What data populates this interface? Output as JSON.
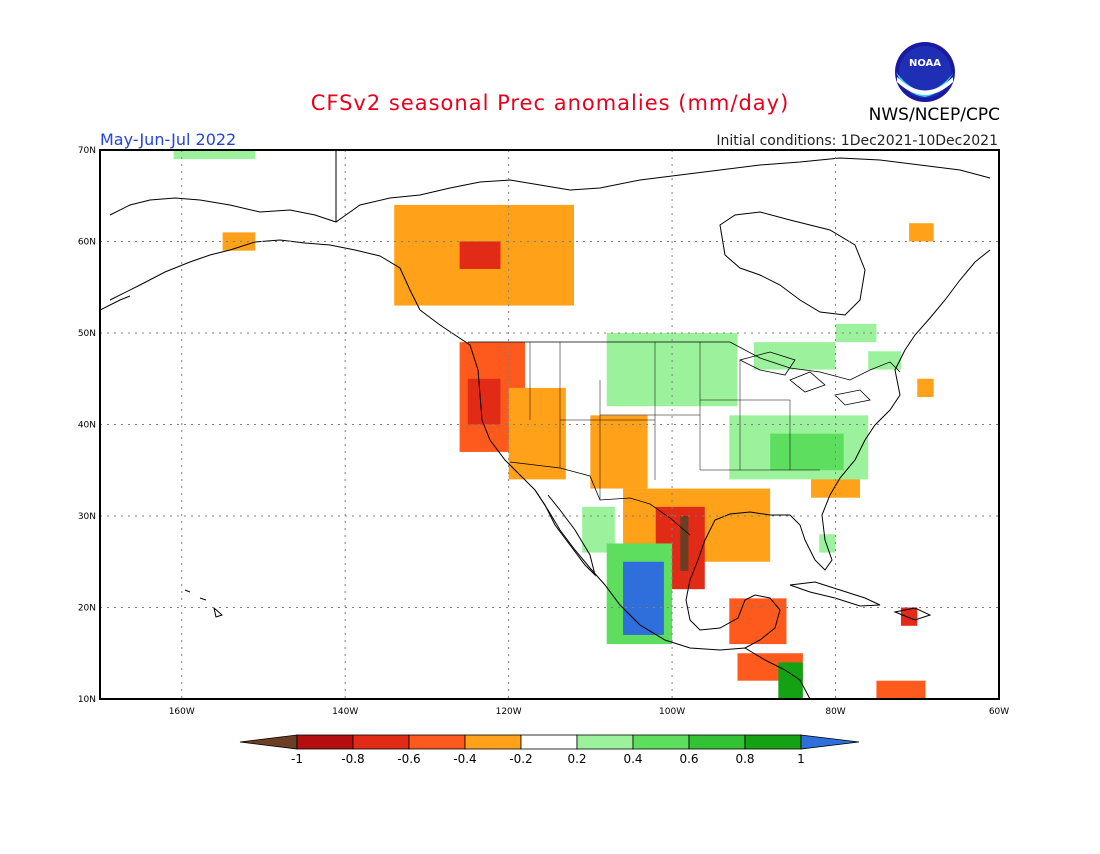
{
  "title": "CFSv2 seasonal Prec anomalies (mm/day)",
  "period": "May-Jun-Jul 2022",
  "initial_conditions": "Initial conditions: 1Dec2021-10Dec2021",
  "agency": "NWS/NCEP/CPC",
  "logo_text": "NOAA",
  "colors": {
    "title": "#e8001e",
    "period": "#2244dd",
    "dry": [
      "#6b3f24",
      "#b50e0e",
      "#e22b17",
      "#ff5a1e",
      "#ffa21a"
    ],
    "neutral": "#ffffff",
    "wet": [
      "#9cf29c",
      "#5ede5e",
      "#33c233",
      "#14a214",
      "#2e6fdc"
    ]
  },
  "map": {
    "lat_ticks": [
      "70N",
      "60N",
      "50N",
      "40N",
      "30N",
      "20N",
      "10N"
    ],
    "lon_ticks": [
      "160W",
      "140W",
      "120W",
      "100W",
      "80W",
      "60W"
    ],
    "lon_range": [
      -170,
      -60
    ],
    "lat_range": [
      10,
      70
    ]
  },
  "legend": {
    "labels": [
      "-1",
      "-0.8",
      "-0.6",
      "-0.4",
      "-0.2",
      "0.2",
      "0.4",
      "0.6",
      "0.8",
      "1"
    ]
  },
  "anomaly_regions": [
    {
      "name": "canada-west-dry",
      "lon": [
        -134,
        -112
      ],
      "lat": [
        53,
        64
      ],
      "class": "d1"
    },
    {
      "name": "canada-west-core",
      "lon": [
        -126,
        -121
      ],
      "lat": [
        57,
        60
      ],
      "class": "d3"
    },
    {
      "name": "pacific-nw-dry",
      "lon": [
        -126,
        -118
      ],
      "lat": [
        37,
        49
      ],
      "class": "d2"
    },
    {
      "name": "pacific-nw-core",
      "lon": [
        -125,
        -121
      ],
      "lat": [
        40,
        45
      ],
      "class": "d3"
    },
    {
      "name": "great-basin-dry",
      "lon": [
        -120,
        -113
      ],
      "lat": [
        34,
        44
      ],
      "class": "d1"
    },
    {
      "name": "colorado-dry",
      "lon": [
        -110,
        -103
      ],
      "lat": [
        33,
        41
      ],
      "class": "d1"
    },
    {
      "name": "texas-dry",
      "lon": [
        -106,
        -88
      ],
      "lat": [
        25,
        33
      ],
      "class": "d1"
    },
    {
      "name": "texas-core",
      "lon": [
        -102,
        -96
      ],
      "lat": [
        22,
        31
      ],
      "class": "d3"
    },
    {
      "name": "texas-max",
      "lon": [
        -99,
        -98
      ],
      "lat": [
        24,
        30
      ],
      "class": "d5"
    },
    {
      "name": "carolina-dry",
      "lon": [
        -83,
        -77
      ],
      "lat": [
        32,
        36
      ],
      "class": "d1"
    },
    {
      "name": "yucatan-dry",
      "lon": [
        -93,
        -86
      ],
      "lat": [
        16,
        21
      ],
      "class": "d2"
    },
    {
      "name": "central-america-dry",
      "lon": [
        -92,
        -84
      ],
      "lat": [
        12,
        15
      ],
      "class": "d2"
    },
    {
      "name": "caribbean-dry",
      "lon": [
        -75,
        -69
      ],
      "lat": [
        10,
        12
      ],
      "class": "d2"
    },
    {
      "name": "hispaniola-dry",
      "lon": [
        -72,
        -70
      ],
      "lat": [
        18,
        20
      ],
      "class": "d3"
    },
    {
      "name": "northeast-canada-dry",
      "lon": [
        -71,
        -68
      ],
      "lat": [
        60,
        62
      ],
      "class": "d1"
    },
    {
      "name": "maine-dry",
      "lon": [
        -70,
        -68
      ],
      "lat": [
        43,
        45
      ],
      "class": "d1"
    },
    {
      "name": "alaska-dry",
      "lon": [
        -155,
        -151
      ],
      "lat": [
        59,
        61
      ],
      "class": "d1"
    },
    {
      "name": "baja-wet",
      "lon": [
        -111,
        -107
      ],
      "lat": [
        26,
        31
      ],
      "class": "w1"
    },
    {
      "name": "mexico-pacific-wet",
      "lon": [
        -108,
        -100
      ],
      "lat": [
        16,
        27
      ],
      "class": "w2"
    },
    {
      "name": "mexico-pacific-blue",
      "lon": [
        -106,
        -101
      ],
      "lat": [
        17,
        25
      ],
      "class": "w5"
    },
    {
      "name": "great-plains-wet",
      "lon": [
        -108,
        -92
      ],
      "lat": [
        42,
        50
      ],
      "class": "w1"
    },
    {
      "name": "ohio-valley-wet",
      "lon": [
        -93,
        -76
      ],
      "lat": [
        34,
        41
      ],
      "class": "w1"
    },
    {
      "name": "ohio-valley-core",
      "lon": [
        -88,
        -79
      ],
      "lat": [
        35,
        39
      ],
      "class": "w2"
    },
    {
      "name": "great-lakes-wet",
      "lon": [
        -90,
        -80
      ],
      "lat": [
        46,
        49
      ],
      "class": "w1"
    },
    {
      "name": "hudson-wet",
      "lon": [
        -80,
        -75
      ],
      "lat": [
        49,
        51
      ],
      "class": "w1"
    },
    {
      "name": "quebec-wet",
      "lon": [
        -76,
        -72
      ],
      "lat": [
        46,
        48
      ],
      "class": "w1"
    },
    {
      "name": "alaska-north-wet",
      "lon": [
        -161,
        -151
      ],
      "lat": [
        69,
        70
      ],
      "class": "w1"
    },
    {
      "name": "central-america-wet",
      "lon": [
        -87,
        -84
      ],
      "lat": [
        10,
        14
      ],
      "class": "w4"
    },
    {
      "name": "florida-wet",
      "lon": [
        -82,
        -80
      ],
      "lat": [
        26,
        28
      ],
      "class": "w1"
    }
  ]
}
